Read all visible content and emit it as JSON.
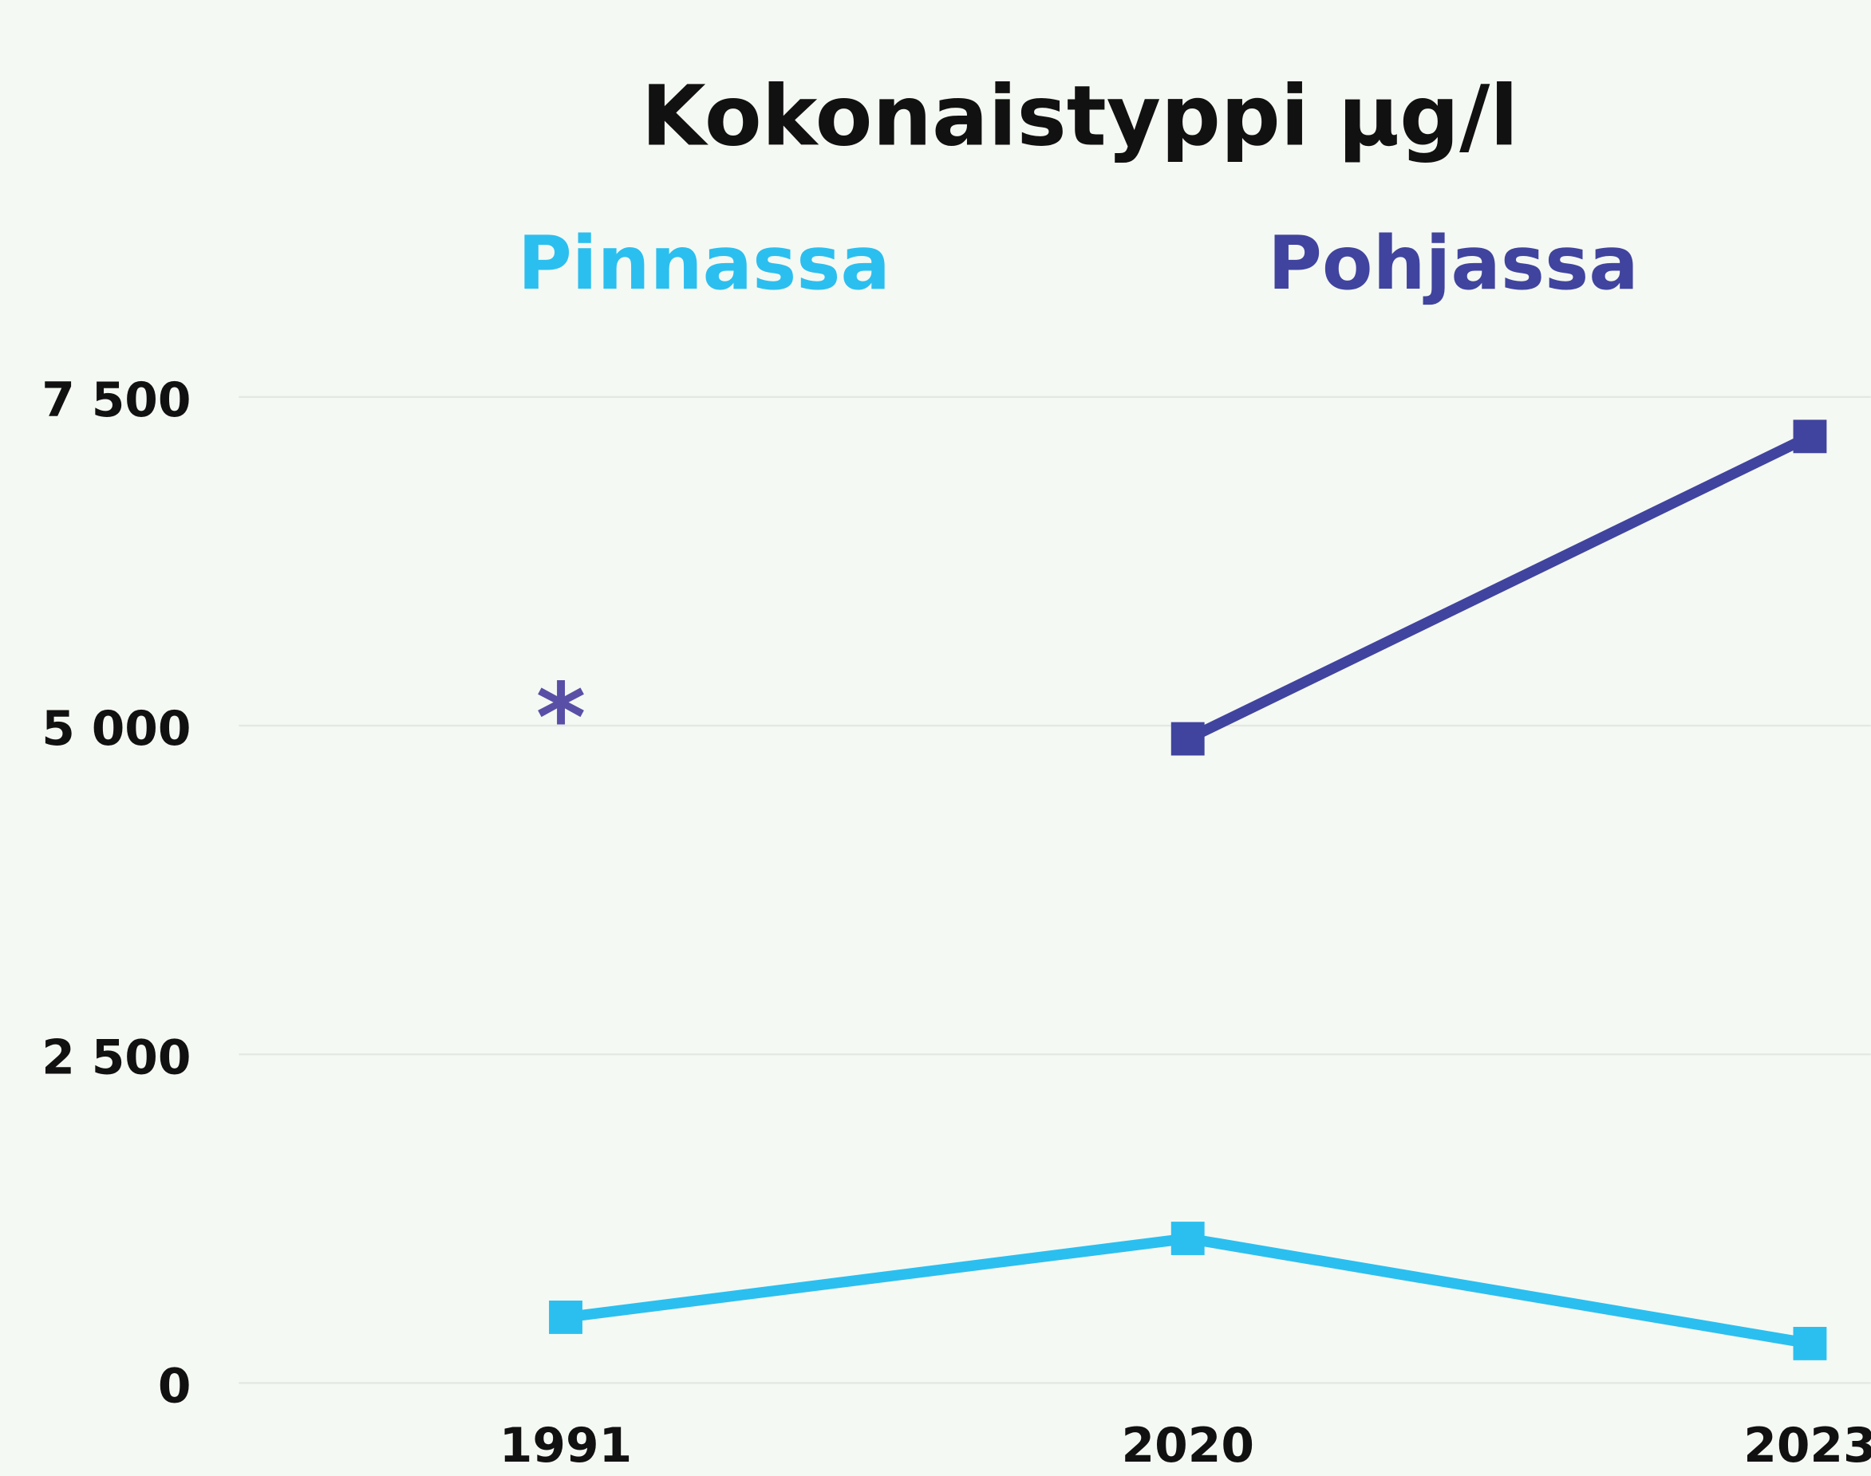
{
  "chart_data": {
    "type": "line",
    "title": "Kokonaistyppi µg/l",
    "categories": [
      "1991",
      "2020",
      "2023"
    ],
    "series": [
      {
        "name": "Pinnassa",
        "color": "#2bbfef",
        "values": [
          500,
          1100,
          300
        ]
      },
      {
        "name": "Pohjassa",
        "color": "#40449e",
        "values": [
          null,
          4900,
          7200
        ]
      }
    ],
    "annotation": "*",
    "ylim": [
      0,
      7500
    ],
    "yticks": [
      0,
      {
        "value": 2500,
        "label": "2 500"
      },
      {
        "value": 5000,
        "label": "5 000"
      },
      {
        "value": 7500,
        "label": "7 500"
      }
    ],
    "grid": true
  }
}
